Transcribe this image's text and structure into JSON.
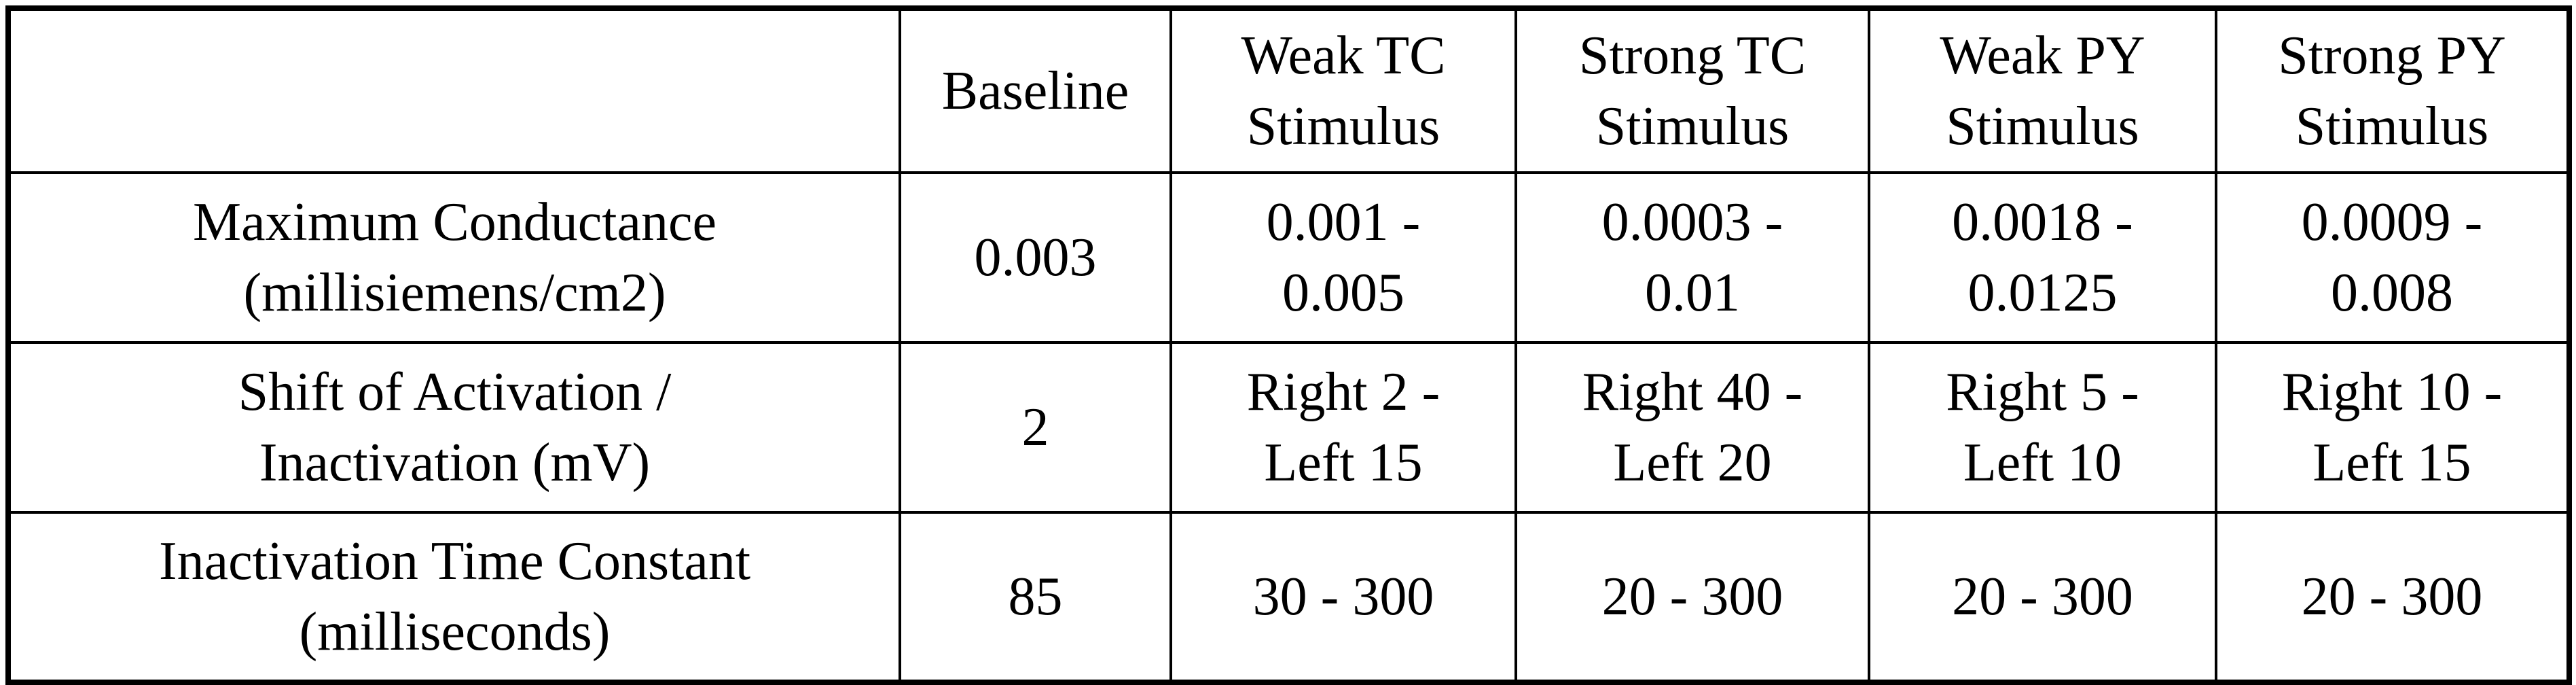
{
  "table": {
    "header": [
      "Baseline",
      "Weak TC\nStimulus",
      "Strong TC\nStimulus",
      "Weak PY\nStimulus",
      "Strong PY\nStimulus"
    ],
    "rows": [
      [
        "Maximum Conductance\n(millisiemens/cm2)",
        "0.003",
        "0.001 -\n0.005",
        "0.0003 -\n0.01",
        "0.0018 -\n0.0125",
        "0.0009 -\n0.008"
      ],
      [
        "Shift of Activation /\nInactivation (mV)",
        "2",
        "Right 2 -\nLeft 15",
        "Right 40 -\nLeft 20",
        "Right 5 -\nLeft 10",
        "Right 10 -\nLeft 15"
      ],
      [
        "Inactivation Time Constant\n(milliseconds)",
        "85",
        "30 - 300",
        "20 - 300",
        "20 - 300",
        "20 - 300"
      ]
    ]
  }
}
